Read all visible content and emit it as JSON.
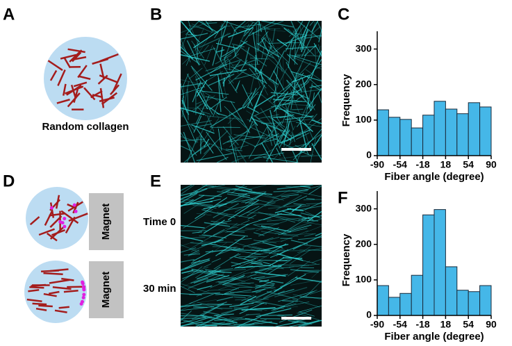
{
  "panels": [
    "A",
    "B",
    "C",
    "D",
    "E",
    "F"
  ],
  "schematic": {
    "random_label": "Random collagen",
    "magnet": "Magnet",
    "time_start": "Time 0",
    "time_end": "30 min"
  },
  "chart_data": [
    {
      "type": "histogram",
      "xlabel": "Fiber angle (degree)",
      "ylabel": "Frequency",
      "bins": [
        -90,
        -72,
        -54,
        -36,
        -18,
        0,
        18,
        36,
        54,
        72,
        90
      ],
      "values": [
        129,
        108,
        102,
        78,
        114,
        153,
        131,
        118,
        149,
        137
      ],
      "color": "#45b7e8",
      "xlim": [
        -90,
        90
      ],
      "xticks": [
        -90,
        -54,
        -18,
        18,
        54,
        90
      ],
      "ylim": [
        0,
        350
      ],
      "yticks": [
        0,
        100,
        200,
        300
      ]
    },
    {
      "type": "histogram",
      "xlabel": "Fiber angle (degree)",
      "ylabel": "Frequency",
      "bins": [
        -90,
        -72,
        -54,
        -36,
        -18,
        0,
        18,
        36,
        54,
        72,
        90
      ],
      "values": [
        84,
        51,
        62,
        113,
        283,
        298,
        137,
        71,
        67,
        84
      ],
      "color": "#45b7e8",
      "xlim": [
        -90,
        90
      ],
      "xticks": [
        -90,
        -54,
        -18,
        18,
        54,
        90
      ],
      "ylim": [
        0,
        350
      ],
      "yticks": [
        0,
        100,
        200,
        300
      ]
    }
  ]
}
